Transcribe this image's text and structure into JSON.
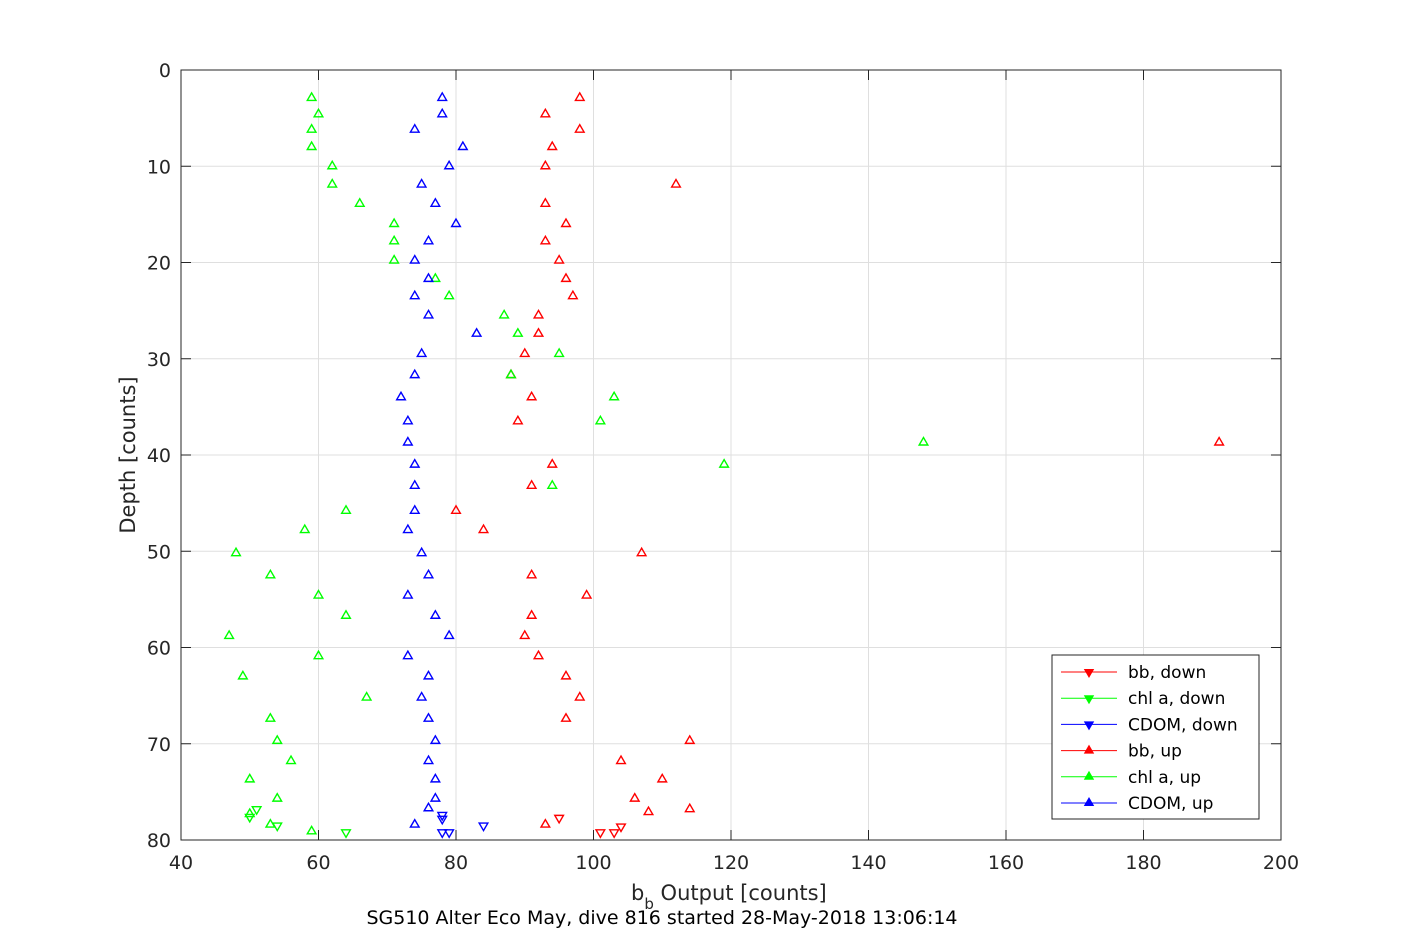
{
  "chart_data": {
    "type": "scatter",
    "xlabel": "b_b Output [counts]",
    "xlabel_main": "b",
    "xlabel_sub": "b",
    "xlabel_rest": " Output [counts]",
    "ylabel": "Depth [counts]",
    "footer": "SG510 Alter Eco May, dive 816 started 28-May-2018 13:06:14",
    "xlim": [
      40,
      200
    ],
    "ylim": [
      0,
      80
    ],
    "y_reversed": true,
    "grid": true,
    "legend_position": "bottom-right",
    "xticks": [
      40,
      60,
      80,
      100,
      120,
      140,
      160,
      180,
      200
    ],
    "yticks": [
      0,
      10,
      20,
      30,
      40,
      50,
      60,
      70,
      80
    ],
    "series": [
      {
        "name": "bb, down",
        "color": "#ff0000",
        "marker": "triangle-down",
        "points": [
          [
            95,
            77.7
          ],
          [
            103,
            79.2
          ],
          [
            104,
            78.6
          ],
          [
            101,
            79.2
          ]
        ]
      },
      {
        "name": "chl a, down",
        "color": "#00ff00",
        "marker": "triangle-down",
        "points": [
          [
            51,
            76.8
          ],
          [
            50,
            77.6
          ],
          [
            54,
            78.5
          ],
          [
            64,
            79.2
          ]
        ]
      },
      {
        "name": "CDOM, down",
        "color": "#0000ff",
        "marker": "triangle-down",
        "points": [
          [
            78,
            77.4
          ],
          [
            78,
            77.8
          ],
          [
            84,
            78.5
          ],
          [
            78,
            79.2
          ],
          [
            79,
            79.2
          ]
        ]
      },
      {
        "name": "bb, up",
        "color": "#ff0000",
        "marker": "triangle-up",
        "points": [
          [
            98,
            2.9
          ],
          [
            93,
            4.6
          ],
          [
            98,
            6.2
          ],
          [
            94,
            8.0
          ],
          [
            93,
            10.0
          ],
          [
            112,
            11.9
          ],
          [
            93,
            13.9
          ],
          [
            96,
            16.0
          ],
          [
            93,
            17.8
          ],
          [
            95,
            19.8
          ],
          [
            96,
            21.7
          ],
          [
            97,
            23.5
          ],
          [
            92,
            25.5
          ],
          [
            92,
            27.4
          ],
          [
            90,
            29.5
          ],
          [
            88,
            31.7
          ],
          [
            91,
            34.0
          ],
          [
            89,
            36.5
          ],
          [
            191,
            38.7
          ],
          [
            94,
            41.0
          ],
          [
            91,
            43.2
          ],
          [
            80,
            45.8
          ],
          [
            84,
            47.8
          ],
          [
            107,
            50.2
          ],
          [
            91,
            52.5
          ],
          [
            99,
            54.6
          ],
          [
            91,
            56.7
          ],
          [
            90,
            58.8
          ],
          [
            92,
            60.9
          ],
          [
            96,
            63.0
          ],
          [
            98,
            65.2
          ],
          [
            96,
            67.4
          ],
          [
            114,
            69.7
          ],
          [
            104,
            71.8
          ],
          [
            110,
            73.7
          ],
          [
            106,
            75.7
          ],
          [
            108,
            77.1
          ],
          [
            114,
            76.8
          ],
          [
            93,
            78.4
          ]
        ]
      },
      {
        "name": "chl a, up",
        "color": "#00ff00",
        "marker": "triangle-up",
        "points": [
          [
            59,
            2.9
          ],
          [
            60,
            4.6
          ],
          [
            59,
            6.2
          ],
          [
            59,
            8.0
          ],
          [
            62,
            10.0
          ],
          [
            62,
            11.9
          ],
          [
            66,
            13.9
          ],
          [
            71,
            16.0
          ],
          [
            71,
            17.8
          ],
          [
            71,
            19.8
          ],
          [
            77,
            21.7
          ],
          [
            79,
            23.5
          ],
          [
            87,
            25.5
          ],
          [
            89,
            27.4
          ],
          [
            95,
            29.5
          ],
          [
            88,
            31.7
          ],
          [
            103,
            34.0
          ],
          [
            101,
            36.5
          ],
          [
            148,
            38.7
          ],
          [
            119,
            41.0
          ],
          [
            94,
            43.2
          ],
          [
            64,
            45.8
          ],
          [
            58,
            47.8
          ],
          [
            48,
            50.2
          ],
          [
            53,
            52.5
          ],
          [
            60,
            54.6
          ],
          [
            64,
            56.7
          ],
          [
            47,
            58.8
          ],
          [
            60,
            60.9
          ],
          [
            49,
            63.0
          ],
          [
            67,
            65.2
          ],
          [
            53,
            67.4
          ],
          [
            54,
            69.7
          ],
          [
            56,
            71.8
          ],
          [
            50,
            73.7
          ],
          [
            54,
            75.7
          ],
          [
            50,
            77.3
          ],
          [
            53,
            78.4
          ],
          [
            59,
            79.1
          ]
        ]
      },
      {
        "name": "CDOM, up",
        "color": "#0000ff",
        "marker": "triangle-up",
        "points": [
          [
            78,
            2.9
          ],
          [
            78,
            4.6
          ],
          [
            74,
            6.2
          ],
          [
            81,
            8.0
          ],
          [
            79,
            10.0
          ],
          [
            75,
            11.9
          ],
          [
            77,
            13.9
          ],
          [
            80,
            16.0
          ],
          [
            76,
            17.8
          ],
          [
            74,
            19.8
          ],
          [
            76,
            21.7
          ],
          [
            74,
            23.5
          ],
          [
            76,
            25.5
          ],
          [
            83,
            27.4
          ],
          [
            75,
            29.5
          ],
          [
            74,
            31.7
          ],
          [
            72,
            34.0
          ],
          [
            73,
            36.5
          ],
          [
            73,
            38.7
          ],
          [
            74,
            41.0
          ],
          [
            74,
            43.2
          ],
          [
            74,
            45.8
          ],
          [
            73,
            47.8
          ],
          [
            75,
            50.2
          ],
          [
            76,
            52.5
          ],
          [
            73,
            54.6
          ],
          [
            77,
            56.7
          ],
          [
            79,
            58.8
          ],
          [
            73,
            60.9
          ],
          [
            76,
            63.0
          ],
          [
            75,
            65.2
          ],
          [
            76,
            67.4
          ],
          [
            77,
            69.7
          ],
          [
            76,
            71.8
          ],
          [
            77,
            73.7
          ],
          [
            77,
            75.7
          ],
          [
            76,
            76.7
          ],
          [
            74,
            78.4
          ]
        ]
      }
    ]
  }
}
